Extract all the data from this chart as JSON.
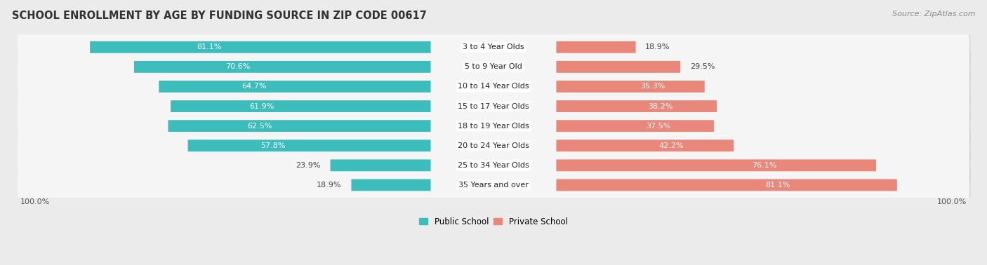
{
  "title": "SCHOOL ENROLLMENT BY AGE BY FUNDING SOURCE IN ZIP CODE 00617",
  "source": "Source: ZipAtlas.com",
  "categories": [
    "3 to 4 Year Olds",
    "5 to 9 Year Old",
    "10 to 14 Year Olds",
    "15 to 17 Year Olds",
    "18 to 19 Year Olds",
    "20 to 24 Year Olds",
    "25 to 34 Year Olds",
    "35 Years and over"
  ],
  "public_values": [
    81.1,
    70.6,
    64.7,
    61.9,
    62.5,
    57.8,
    23.9,
    18.9
  ],
  "private_values": [
    18.9,
    29.5,
    35.3,
    38.2,
    37.5,
    42.2,
    76.1,
    81.1
  ],
  "public_color": "#3DBCBC",
  "private_color": "#E8877A",
  "bg_color": "#EBEBEB",
  "row_bg_color": "#F5F5F5",
  "title_fontsize": 10.5,
  "source_fontsize": 8,
  "label_fontsize": 8,
  "bar_label_fontsize": 8,
  "legend_fontsize": 8.5,
  "axis_label_fontsize": 8,
  "pub_label_threshold": 30,
  "priv_label_threshold": 30
}
